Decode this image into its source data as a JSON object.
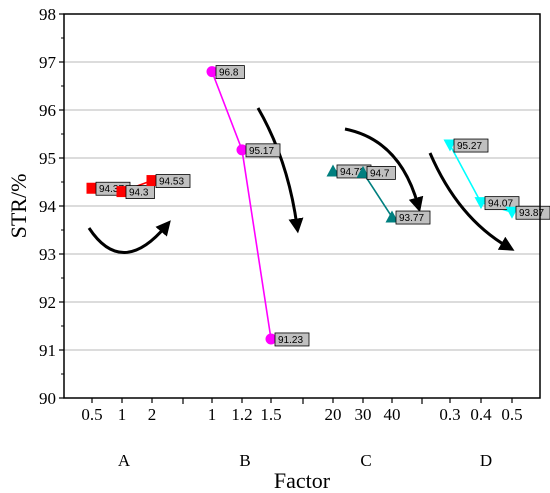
{
  "chart_data": {
    "type": "line",
    "title": "",
    "xlabel": "Factor",
    "ylabel": "STR/%",
    "ylim": [
      90,
      98
    ],
    "yticks": [
      90,
      91,
      92,
      93,
      94,
      95,
      96,
      97,
      98
    ],
    "grid": true,
    "series": [
      {
        "group": "A",
        "x_labels": [
          "0.5",
          "1",
          "2"
        ],
        "values": [
          94.37,
          94.3,
          94.53
        ],
        "value_labels": [
          "94.37",
          "94.3",
          "94.53"
        ],
        "color": "#ff0000",
        "marker": "square",
        "trend": "u-shape"
      },
      {
        "group": "B",
        "x_labels": [
          "1",
          "1.2",
          "1.5"
        ],
        "values": [
          96.8,
          95.17,
          91.23
        ],
        "value_labels": [
          "96.8",
          "95.17",
          "91.23"
        ],
        "color": "#ff00ff",
        "marker": "circle",
        "trend": "decrease"
      },
      {
        "group": "C",
        "x_labels": [
          "20",
          "30",
          "40"
        ],
        "values": [
          94.73,
          94.7,
          93.77
        ],
        "value_labels": [
          "94.73",
          "94.7",
          "93.77"
        ],
        "color": "#007f7f",
        "marker": "triangle-up",
        "trend": "decrease"
      },
      {
        "group": "D",
        "x_labels": [
          "0.3",
          "0.4",
          "0.5"
        ],
        "values": [
          95.27,
          94.07,
          93.87
        ],
        "value_labels": [
          "95.27",
          "94.07",
          "93.87"
        ],
        "color": "#00ffff",
        "marker": "triangle-down",
        "trend": "decrease"
      }
    ]
  }
}
